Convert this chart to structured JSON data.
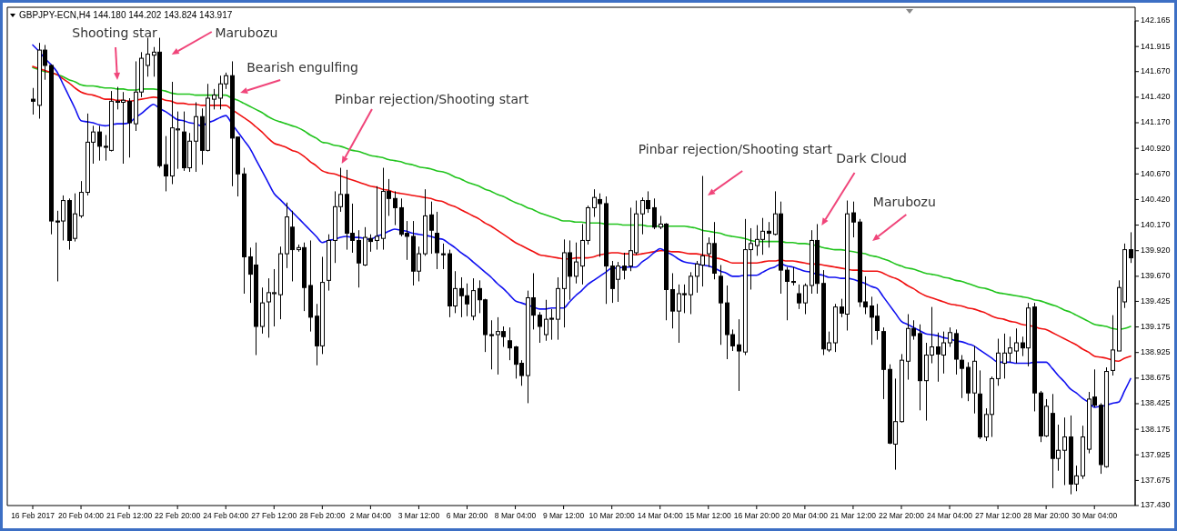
{
  "chart_data": {
    "type": "candlestick",
    "title": "GBPJPY-ECN,H4  144.180 144.202 143.824 143.917",
    "categories": [
      "16 Feb 2017",
      null,
      null,
      null,
      null,
      null,
      null,
      null,
      "20 Feb 04:00",
      null,
      null,
      null,
      null,
      null,
      null,
      null,
      "21 Feb 12:00",
      null,
      null,
      null,
      null,
      null,
      null,
      null,
      "22 Feb 20:00",
      null,
      null,
      null,
      null,
      null,
      null,
      null,
      "24 Feb 04:00",
      null,
      null,
      null,
      null,
      null,
      null,
      null,
      "27 Feb 12:00",
      null,
      null,
      null,
      null,
      null,
      null,
      null,
      "28 Feb 20:00",
      null,
      null,
      null,
      null,
      null,
      null,
      null,
      "2 Mar 04:00",
      null,
      null,
      null,
      null,
      null,
      null,
      null,
      "3 Mar 12:00",
      null,
      null,
      null,
      null,
      null,
      null,
      null,
      "6 Mar 20:00",
      null,
      null,
      null,
      null,
      null,
      null,
      null,
      "8 Mar 04:00",
      null,
      null,
      null,
      null,
      null,
      null,
      null,
      "9 Mar 12:00",
      null,
      null,
      null,
      null,
      null,
      null,
      null,
      "10 Mar 20:00",
      null,
      null,
      null,
      null,
      null,
      null,
      null,
      "14 Mar 04:00",
      null,
      null,
      null,
      null,
      null,
      null,
      null,
      "15 Mar 12:00",
      null,
      null,
      null,
      null,
      null,
      null,
      null,
      "16 Mar 20:00",
      null,
      null,
      null,
      null,
      null,
      null,
      null,
      "20 Mar 04:00",
      null,
      null,
      null,
      null,
      null,
      null,
      null,
      "21 Mar 12:00",
      null,
      null,
      null,
      null,
      null,
      null,
      null,
      "22 Mar 20:00",
      null,
      null,
      null,
      null,
      null,
      null,
      null,
      "24 Mar 04:00",
      null,
      null,
      null,
      null,
      null,
      null,
      null,
      "27 Mar 12:00",
      null,
      null,
      null,
      null,
      null,
      null,
      null,
      "28 Mar 20:00",
      null,
      null,
      null,
      null,
      null,
      null,
      null,
      "30 Mar 04:00",
      null,
      null,
      null,
      null,
      null,
      null
    ],
    "ohlc": [
      [
        141.4,
        141.51,
        141.25,
        141.38
      ],
      [
        141.34,
        141.95,
        141.21,
        141.88
      ],
      [
        141.88,
        141.93,
        141.59,
        141.73
      ],
      [
        141.73,
        141.74,
        140.08,
        140.21
      ],
      [
        140.21,
        140.31,
        139.62,
        140.2
      ],
      [
        140.21,
        140.46,
        140.02,
        140.41
      ],
      [
        140.41,
        140.43,
        139.93,
        140.02
      ],
      [
        140.04,
        140.48,
        140.01,
        140.28
      ],
      [
        140.26,
        140.6,
        140.24,
        140.49
      ],
      [
        140.49,
        141.26,
        140.46,
        140.98
      ],
      [
        140.98,
        141.14,
        140.77,
        141.08
      ],
      [
        141.08,
        141.14,
        140.8,
        140.94
      ],
      [
        140.94,
        141.05,
        140.8,
        140.93
      ],
      [
        140.9,
        141.48,
        140.89,
        141.38
      ],
      [
        141.37,
        141.52,
        141.3,
        141.38
      ],
      [
        141.37,
        141.47,
        140.77,
        141.39
      ],
      [
        141.38,
        141.41,
        140.83,
        141.17
      ],
      [
        141.16,
        141.77,
        141.09,
        141.47
      ],
      [
        141.47,
        141.86,
        141.42,
        141.8
      ],
      [
        141.73,
        142.0,
        141.62,
        141.84
      ],
      [
        141.83,
        141.91,
        141.62,
        141.86
      ],
      [
        141.86,
        142.0,
        140.73,
        140.75
      ],
      [
        140.76,
        141.04,
        140.5,
        140.65
      ],
      [
        140.65,
        141.57,
        140.57,
        141.12
      ],
      [
        141.1,
        141.28,
        140.72,
        141.11
      ],
      [
        141.08,
        141.28,
        140.7,
        140.73
      ],
      [
        140.73,
        141.07,
        140.69,
        140.99
      ],
      [
        140.99,
        141.37,
        140.69,
        141.23
      ],
      [
        141.23,
        141.31,
        140.76,
        140.9
      ],
      [
        140.9,
        141.55,
        140.89,
        141.41
      ],
      [
        141.4,
        141.5,
        141.3,
        141.44
      ],
      [
        141.41,
        141.63,
        141.3,
        141.55
      ],
      [
        141.55,
        141.66,
        141.5,
        141.63
      ],
      [
        141.63,
        141.77,
        140.55,
        141.02
      ],
      [
        141.03,
        141.03,
        140.45,
        140.67
      ],
      [
        140.67,
        140.73,
        139.5,
        139.86
      ],
      [
        139.86,
        139.95,
        139.41,
        139.69
      ],
      [
        139.78,
        140.0,
        138.9,
        139.18
      ],
      [
        139.18,
        139.56,
        139.11,
        139.41
      ],
      [
        139.42,
        139.65,
        139.07,
        139.51
      ],
      [
        139.5,
        139.74,
        139.18,
        139.51
      ],
      [
        139.49,
        139.96,
        139.25,
        139.89
      ],
      [
        139.89,
        140.39,
        139.75,
        140.25
      ],
      [
        140.15,
        140.31,
        139.62,
        139.93
      ],
      [
        139.93,
        139.98,
        139.91,
        139.95
      ],
      [
        139.95,
        140.0,
        139.33,
        139.56
      ],
      [
        139.58,
        140.02,
        139.13,
        139.27
      ],
      [
        139.28,
        139.4,
        138.8,
        138.99
      ],
      [
        138.99,
        139.86,
        138.91,
        139.61
      ],
      [
        139.63,
        140.08,
        139.53,
        140.02
      ],
      [
        140.02,
        140.5,
        139.8,
        140.35
      ],
      [
        140.35,
        140.73,
        140.3,
        140.47
      ],
      [
        140.47,
        140.71,
        139.93,
        140.09
      ],
      [
        140.09,
        140.38,
        139.9,
        140.02
      ],
      [
        140.02,
        140.12,
        139.56,
        139.8
      ],
      [
        139.78,
        140.15,
        139.77,
        140.05
      ],
      [
        140.04,
        140.08,
        139.91,
        140.01
      ],
      [
        140.02,
        140.55,
        139.93,
        140.06
      ],
      [
        140.04,
        140.73,
        139.93,
        140.5
      ],
      [
        140.5,
        140.62,
        140.26,
        140.43
      ],
      [
        140.43,
        140.5,
        140.17,
        140.34
      ],
      [
        140.34,
        140.43,
        140.06,
        140.08
      ],
      [
        140.09,
        140.21,
        139.83,
        140.06
      ],
      [
        140.06,
        140.21,
        139.58,
        139.72
      ],
      [
        139.72,
        139.96,
        139.62,
        139.89
      ],
      [
        139.89,
        140.52,
        139.87,
        140.26
      ],
      [
        140.27,
        140.4,
        139.89,
        140.12
      ],
      [
        140.09,
        140.3,
        139.74,
        139.9
      ],
      [
        139.89,
        139.99,
        139.74,
        139.88
      ],
      [
        139.89,
        139.93,
        139.27,
        139.38
      ],
      [
        139.38,
        139.72,
        139.31,
        139.55
      ],
      [
        139.55,
        139.66,
        139.27,
        139.48
      ],
      [
        139.48,
        139.6,
        139.28,
        139.4
      ],
      [
        139.28,
        139.65,
        139.24,
        139.53
      ],
      [
        139.55,
        139.63,
        139.31,
        139.44
      ],
      [
        139.44,
        139.45,
        138.93,
        139.1
      ],
      [
        139.1,
        139.24,
        138.76,
        139.09
      ],
      [
        139.1,
        139.27,
        138.71,
        139.13
      ],
      [
        139.13,
        139.18,
        138.98,
        139.08
      ],
      [
        139.04,
        139.17,
        138.85,
        138.97
      ],
      [
        138.98,
        138.99,
        138.67,
        138.81
      ],
      [
        138.82,
        138.85,
        138.6,
        138.7
      ],
      [
        138.7,
        139.53,
        138.43,
        139.46
      ],
      [
        139.46,
        139.7,
        139.15,
        139.29
      ],
      [
        139.29,
        139.32,
        139.02,
        139.18
      ],
      [
        139.1,
        139.44,
        139.04,
        139.25
      ],
      [
        139.26,
        139.35,
        139.05,
        139.25
      ],
      [
        139.25,
        139.66,
        139.05,
        139.55
      ],
      [
        139.55,
        140.03,
        139.17,
        139.9
      ],
      [
        139.9,
        140.02,
        139.44,
        139.67
      ],
      [
        139.67,
        140.0,
        139.6,
        139.81
      ],
      [
        139.77,
        140.18,
        139.59,
        140.02
      ],
      [
        140.02,
        140.36,
        139.98,
        140.34
      ],
      [
        140.34,
        140.52,
        140.25,
        140.44
      ],
      [
        140.42,
        140.48,
        139.86,
        140.38
      ],
      [
        140.38,
        140.45,
        139.4,
        139.77
      ],
      [
        139.77,
        139.82,
        139.41,
        139.55
      ],
      [
        139.64,
        139.81,
        139.42,
        139.77
      ],
      [
        139.77,
        139.9,
        139.64,
        139.73
      ],
      [
        139.77,
        140.34,
        139.72,
        139.92
      ],
      [
        139.9,
        140.41,
        139.88,
        140.28
      ],
      [
        140.28,
        140.44,
        140.08,
        140.41
      ],
      [
        140.41,
        140.5,
        140.29,
        140.33
      ],
      [
        140.34,
        140.43,
        140.13,
        140.15
      ],
      [
        140.15,
        140.26,
        140.13,
        140.18
      ],
      [
        140.18,
        140.19,
        139.24,
        139.54
      ],
      [
        139.54,
        139.7,
        139.16,
        139.33
      ],
      [
        139.33,
        139.59,
        139.02,
        139.5
      ],
      [
        139.5,
        139.59,
        139.31,
        139.49
      ],
      [
        139.49,
        139.71,
        139.3,
        139.67
      ],
      [
        139.67,
        139.82,
        139.51,
        139.79
      ],
      [
        139.78,
        140.65,
        139.57,
        139.87
      ],
      [
        139.89,
        140.05,
        139.76,
        139.99
      ],
      [
        139.99,
        140.2,
        139.64,
        139.7
      ],
      [
        139.67,
        139.78,
        139.0,
        139.41
      ],
      [
        139.41,
        139.58,
        138.86,
        139.1
      ],
      [
        139.1,
        139.15,
        138.94,
        138.99
      ],
      [
        139.0,
        139.25,
        138.55,
        138.94
      ],
      [
        138.93,
        140.23,
        138.9,
        139.93
      ],
      [
        139.93,
        140.14,
        139.54,
        139.99
      ],
      [
        139.97,
        140.17,
        139.87,
        140.03
      ],
      [
        140.03,
        140.24,
        139.88,
        140.11
      ],
      [
        140.11,
        140.2,
        139.95,
        140.09
      ],
      [
        140.08,
        140.5,
        140.07,
        140.28
      ],
      [
        140.28,
        140.4,
        139.5,
        139.73
      ],
      [
        139.73,
        139.76,
        139.24,
        139.62
      ],
      [
        139.62,
        139.76,
        139.58,
        139.61
      ],
      [
        139.5,
        139.59,
        139.35,
        139.41
      ],
      [
        139.41,
        139.6,
        139.3,
        139.58
      ],
      [
        139.58,
        140.12,
        139.5,
        140.02
      ],
      [
        140.02,
        140.18,
        139.5,
        139.6
      ],
      [
        139.6,
        139.73,
        138.9,
        138.96
      ],
      [
        138.95,
        139.13,
        138.93,
        139.02
      ],
      [
        139.02,
        139.4,
        138.93,
        139.37
      ],
      [
        139.37,
        139.45,
        139.27,
        139.31
      ],
      [
        139.3,
        140.41,
        139.14,
        140.28
      ],
      [
        140.29,
        140.4,
        140.05,
        140.2
      ],
      [
        140.2,
        140.23,
        139.37,
        139.42
      ],
      [
        139.42,
        139.67,
        139.3,
        139.37
      ],
      [
        139.38,
        139.47,
        139.0,
        139.27
      ],
      [
        139.28,
        139.4,
        139.05,
        139.14
      ],
      [
        139.13,
        139.17,
        138.47,
        138.76
      ],
      [
        138.76,
        138.81,
        138.03,
        138.04
      ],
      [
        138.03,
        138.67,
        137.78,
        138.25
      ],
      [
        138.25,
        138.91,
        138.24,
        138.85
      ],
      [
        138.84,
        139.3,
        138.66,
        139.16
      ],
      [
        139.16,
        139.24,
        139.05,
        139.09
      ],
      [
        139.11,
        139.2,
        138.36,
        138.65
      ],
      [
        138.65,
        139.02,
        138.26,
        138.9
      ],
      [
        138.9,
        139.37,
        138.82,
        138.98
      ],
      [
        138.98,
        139.12,
        138.64,
        138.91
      ],
      [
        138.9,
        139.13,
        138.72,
        139.02
      ],
      [
        139.02,
        139.17,
        138.98,
        139.12
      ],
      [
        139.11,
        139.15,
        138.71,
        138.86
      ],
      [
        138.85,
        138.9,
        138.48,
        138.77
      ],
      [
        138.78,
        138.83,
        138.45,
        138.53
      ],
      [
        138.53,
        138.99,
        138.33,
        138.84
      ],
      [
        138.52,
        138.75,
        138.08,
        138.1
      ],
      [
        138.1,
        138.38,
        138.06,
        138.32
      ],
      [
        138.32,
        138.69,
        138.1,
        138.67
      ],
      [
        138.67,
        139.06,
        138.6,
        138.92
      ],
      [
        138.82,
        139.11,
        138.67,
        138.92
      ],
      [
        138.92,
        139.08,
        138.83,
        138.97
      ],
      [
        138.94,
        139.16,
        138.82,
        139.02
      ],
      [
        139.02,
        139.08,
        138.89,
        138.97
      ],
      [
        138.97,
        139.41,
        138.79,
        139.36
      ],
      [
        139.37,
        139.41,
        138.35,
        138.53
      ],
      [
        138.53,
        138.55,
        138.05,
        138.11
      ],
      [
        138.11,
        138.47,
        138.1,
        138.4
      ],
      [
        138.33,
        138.52,
        137.6,
        137.89
      ],
      [
        137.89,
        138.22,
        137.77,
        137.97
      ],
      [
        137.97,
        138.29,
        137.63,
        138.1
      ],
      [
        138.1,
        138.31,
        137.54,
        137.64
      ],
      [
        137.64,
        137.82,
        137.57,
        137.72
      ],
      [
        137.72,
        138.21,
        137.69,
        138.1
      ],
      [
        137.98,
        138.54,
        137.94,
        138.47
      ],
      [
        138.49,
        138.76,
        138.39,
        138.41
      ],
      [
        138.41,
        138.43,
        137.74,
        137.83
      ],
      [
        137.81,
        138.78,
        137.8,
        138.74
      ],
      [
        138.75,
        139.29,
        138.7,
        138.95
      ],
      [
        138.94,
        139.63,
        138.94,
        139.56
      ],
      [
        139.42,
        139.99,
        139.36,
        139.93
      ],
      [
        139.93,
        140.1,
        139.8,
        139.85
      ]
    ],
    "series": [
      {
        "type": "line",
        "color": "#22c41e",
        "values": [
          141.71,
          141.69,
          141.67,
          141.66,
          141.64,
          141.62,
          141.59,
          141.57,
          141.54,
          141.53,
          141.53,
          141.52,
          141.51,
          141.51,
          141.5,
          141.5,
          141.49,
          141.49,
          141.5,
          141.5,
          141.5,
          141.49,
          141.48,
          141.46,
          141.45,
          141.45,
          141.45,
          141.44,
          141.44,
          141.44,
          141.44,
          141.44,
          141.44,
          141.41,
          141.39,
          141.36,
          141.33,
          141.3,
          141.27,
          141.23,
          141.2,
          141.18,
          141.16,
          141.14,
          141.12,
          141.09,
          141.05,
          141.02,
          140.98,
          140.97,
          140.95,
          140.94,
          140.92,
          140.9,
          140.89,
          140.87,
          140.85,
          140.84,
          140.83,
          140.81,
          140.8,
          140.79,
          140.77,
          140.76,
          140.74,
          140.73,
          140.72,
          140.7,
          140.69,
          140.67,
          140.64,
          140.62,
          140.59,
          140.57,
          140.55,
          140.52,
          140.5,
          140.47,
          140.45,
          140.42,
          140.39,
          140.37,
          140.34,
          140.32,
          140.29,
          140.27,
          140.25,
          140.23,
          140.21,
          140.21,
          140.2,
          140.2,
          140.19,
          140.19,
          140.19,
          140.18,
          140.18,
          140.18,
          140.17,
          140.17,
          140.17,
          140.17,
          140.16,
          140.16,
          140.16,
          140.16,
          140.16,
          140.16,
          140.16,
          140.15,
          140.14,
          140.12,
          140.11,
          140.1,
          140.09,
          140.07,
          140.06,
          140.05,
          140.04,
          140.02,
          140.01,
          140.01,
          140.01,
          140.01,
          140.01,
          140.0,
          140.0,
          139.99,
          139.99,
          139.98,
          139.97,
          139.95,
          139.94,
          139.93,
          139.93,
          139.92,
          139.91,
          139.9,
          139.89,
          139.87,
          139.86,
          139.84,
          139.82,
          139.79,
          139.77,
          139.75,
          139.74,
          139.72,
          139.7,
          139.69,
          139.68,
          139.66,
          139.65,
          139.63,
          139.62,
          139.6,
          139.58,
          139.56,
          139.55,
          139.53,
          139.51,
          139.5,
          139.49,
          139.48,
          139.47,
          139.46,
          139.44,
          139.43,
          139.41,
          139.39,
          139.37,
          139.34,
          139.32,
          139.29,
          139.26,
          139.23,
          139.2,
          139.19,
          139.18,
          139.16,
          139.15,
          139.16,
          139.18
        ]
      },
      {
        "type": "line",
        "color": "#f01010",
        "values": [
          141.72,
          141.7,
          141.68,
          141.66,
          141.64,
          141.6,
          141.56,
          141.51,
          141.47,
          141.45,
          141.44,
          141.42,
          141.4,
          141.4,
          141.39,
          141.39,
          141.38,
          141.39,
          141.4,
          141.41,
          141.42,
          141.41,
          141.39,
          141.38,
          141.36,
          141.36,
          141.35,
          141.35,
          141.34,
          141.34,
          141.34,
          141.34,
          141.34,
          141.3,
          141.26,
          141.22,
          141.18,
          141.13,
          141.08,
          141.02,
          140.97,
          140.95,
          140.93,
          140.9,
          140.88,
          140.84,
          140.79,
          140.75,
          140.7,
          140.68,
          140.67,
          140.65,
          140.63,
          140.61,
          140.59,
          140.57,
          140.55,
          140.54,
          140.52,
          140.51,
          140.49,
          140.48,
          140.47,
          140.46,
          140.45,
          140.44,
          140.43,
          140.41,
          140.4,
          140.37,
          140.35,
          140.32,
          140.29,
          140.26,
          140.23,
          140.19,
          140.16,
          140.12,
          140.08,
          140.04,
          140.0,
          139.97,
          139.94,
          139.91,
          139.88,
          139.87,
          139.86,
          139.85,
          139.84,
          139.84,
          139.85,
          139.85,
          139.85,
          139.86,
          139.88,
          139.89,
          139.9,
          139.9,
          139.89,
          139.89,
          139.88,
          139.89,
          139.9,
          139.91,
          139.92,
          139.92,
          139.91,
          139.91,
          139.9,
          139.89,
          139.89,
          139.88,
          139.87,
          139.85,
          139.84,
          139.82,
          139.8,
          139.8,
          139.8,
          139.8,
          139.8,
          139.81,
          139.82,
          139.82,
          139.83,
          139.82,
          139.82,
          139.81,
          139.8,
          139.79,
          139.79,
          139.78,
          139.77,
          139.76,
          139.75,
          139.74,
          139.73,
          139.73,
          139.72,
          139.72,
          139.72,
          139.7,
          139.67,
          139.65,
          139.62,
          139.58,
          139.55,
          139.51,
          139.48,
          139.46,
          139.44,
          139.42,
          139.4,
          139.39,
          139.38,
          139.36,
          139.35,
          139.33,
          139.31,
          139.28,
          139.26,
          139.25,
          139.23,
          139.22,
          139.2,
          139.19,
          139.18,
          139.16,
          139.15,
          139.12,
          139.09,
          139.06,
          139.03,
          139.0,
          138.96,
          138.93,
          138.89,
          138.88,
          138.87,
          138.85,
          138.84,
          138.87,
          138.89
        ]
      },
      {
        "type": "line",
        "color": "#1010f0",
        "values": [
          141.93,
          141.87,
          141.8,
          141.74,
          141.67,
          141.55,
          141.43,
          141.31,
          141.19,
          141.18,
          141.17,
          141.15,
          141.14,
          141.15,
          141.16,
          141.16,
          141.17,
          141.22,
          141.26,
          141.31,
          141.35,
          141.31,
          141.28,
          141.24,
          141.2,
          141.19,
          141.17,
          141.16,
          141.14,
          141.17,
          141.19,
          141.22,
          141.24,
          141.16,
          141.08,
          141.0,
          140.92,
          140.81,
          140.7,
          140.59,
          140.48,
          140.42,
          140.36,
          140.3,
          140.24,
          140.18,
          140.12,
          140.06,
          140.0,
          140.02,
          140.03,
          140.05,
          140.06,
          140.05,
          140.05,
          140.04,
          140.03,
          140.06,
          140.08,
          140.11,
          140.13,
          140.12,
          140.11,
          140.09,
          140.08,
          140.07,
          140.06,
          140.04,
          140.03,
          139.99,
          139.95,
          139.9,
          139.86,
          139.81,
          139.76,
          139.71,
          139.66,
          139.6,
          139.55,
          139.49,
          139.43,
          139.41,
          139.39,
          139.37,
          139.35,
          139.35,
          139.36,
          139.36,
          139.36,
          139.42,
          139.48,
          139.53,
          139.59,
          139.63,
          139.67,
          139.71,
          139.75,
          139.75,
          139.76,
          139.76,
          139.76,
          139.81,
          139.85,
          139.9,
          139.94,
          139.91,
          139.88,
          139.84,
          139.81,
          139.8,
          139.79,
          139.78,
          139.77,
          139.75,
          139.72,
          139.7,
          139.67,
          139.67,
          139.68,
          139.68,
          139.68,
          139.71,
          139.74,
          139.76,
          139.79,
          139.77,
          139.76,
          139.74,
          139.72,
          139.71,
          139.69,
          139.68,
          139.66,
          139.66,
          139.65,
          139.65,
          139.64,
          139.62,
          139.6,
          139.57,
          139.55,
          139.47,
          139.39,
          139.31,
          139.23,
          139.2,
          139.17,
          139.14,
          139.11,
          139.1,
          139.09,
          139.07,
          139.06,
          139.04,
          139.03,
          139.01,
          138.99,
          138.95,
          138.91,
          138.87,
          138.83,
          138.83,
          138.83,
          138.82,
          138.82,
          138.82,
          138.83,
          138.83,
          138.83,
          138.77,
          138.7,
          138.64,
          138.57,
          138.53,
          138.48,
          138.44,
          138.39,
          138.4,
          138.41,
          138.43,
          138.44,
          138.55,
          138.67
        ]
      }
    ],
    "ylim": [
      137.43,
      142.165
    ],
    "yticks": [
      142.165,
      141.915,
      {
        "value": 141.67,
        "label": "141.670"
      },
      {
        "value": 141.42,
        "label": "141.420"
      },
      {
        "value": 141.17,
        "label": "141.170"
      },
      {
        "value": 140.92,
        "label": "140.920"
      },
      {
        "value": 140.67,
        "label": "140.670"
      },
      {
        "value": 140.42,
        "label": "140.420"
      },
      {
        "value": 140.17,
        "label": "140.170"
      },
      {
        "value": 139.92,
        "label": "139.920"
      },
      {
        "value": 139.67,
        "label": "139.670"
      },
      139.425,
      139.175,
      138.925,
      138.675,
      138.425,
      138.175,
      137.925,
      137.675,
      {
        "value": 137.43,
        "label": "137.430"
      }
    ],
    "annotations": [
      "Shooting star",
      "Marubozu",
      "Bearish engulfing",
      "Pinbar rejection/Shooting start",
      "Pinbar rejection/Shooting start",
      "Dark Cloud",
      "Marubozu"
    ]
  }
}
